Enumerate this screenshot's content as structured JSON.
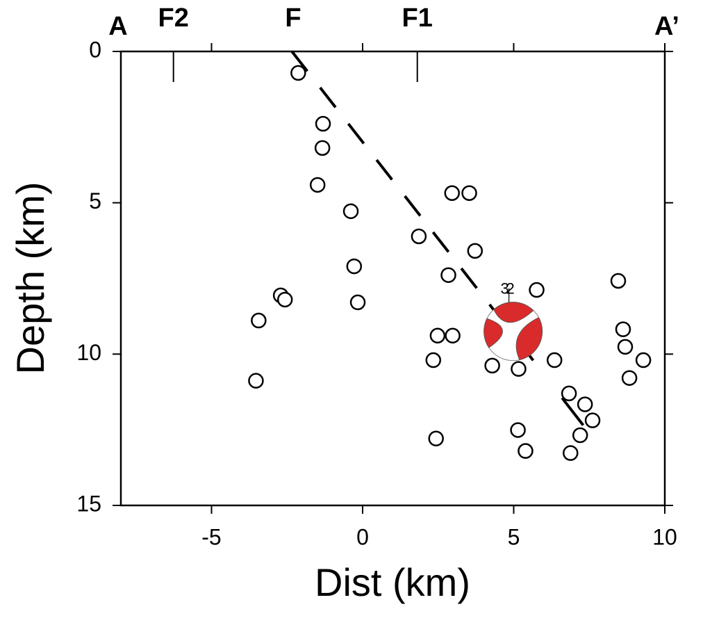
{
  "chart_data": {
    "type": "scatter",
    "x_label": "Dist (km)",
    "y_label": "Depth (km)",
    "xlim": [
      -8,
      10
    ],
    "ylim": [
      15,
      0
    ],
    "xticks": [
      -5,
      0,
      5,
      10
    ],
    "yticks": [
      0,
      5,
      10,
      15
    ],
    "y_inverted": true,
    "profile_ends": [
      "A",
      "A’"
    ],
    "profile_markers": [
      {
        "label": "F2",
        "x": -6.26,
        "tick": true
      },
      {
        "label": "F",
        "x": -2.3,
        "tick": false
      },
      {
        "label": "F1",
        "x": 1.81,
        "tick": true
      }
    ],
    "series": [
      {
        "color": "#000000",
        "x": [
          -2.13,
          -1.31,
          -1.33,
          -1.49,
          -0.39,
          -0.28,
          -0.16,
          -2.71,
          -2.57,
          -3.44,
          -3.53,
          1.86,
          2.96,
          3.53,
          3.72,
          2.84,
          5.76,
          2.48,
          2.98,
          2.34,
          2.43,
          4.29,
          5.16,
          6.35,
          8.46,
          8.62,
          8.69,
          9.29,
          8.83,
          6.83,
          7.36,
          7.61,
          7.2,
          5.14,
          5.39,
          6.88
        ],
        "values": [
          0.71,
          2.39,
          3.19,
          4.41,
          5.28,
          7.1,
          8.29,
          8.06,
          8.2,
          8.89,
          10.88,
          6.11,
          4.68,
          4.68,
          6.59,
          7.39,
          7.88,
          9.39,
          9.39,
          10.2,
          12.79,
          10.38,
          10.49,
          10.2,
          7.58,
          9.18,
          9.76,
          10.2,
          10.79,
          11.3,
          11.66,
          12.19,
          12.68,
          12.51,
          13.2,
          13.27
        ]
      }
    ],
    "fault_lines": [
      {
        "x": [
          -2.34,
          5.85
        ],
        "values": [
          0,
          10.47
        ],
        "dashed": true
      },
      {
        "x": [
          6.6,
          7.3
        ],
        "values": [
          11.45,
          12.35
        ],
        "dashed": false
      }
    ],
    "focal_mechanism": {
      "x": 4.98,
      "y": 9.25,
      "color": "#d92b2b",
      "labels": [
        "3",
        "2"
      ]
    }
  }
}
